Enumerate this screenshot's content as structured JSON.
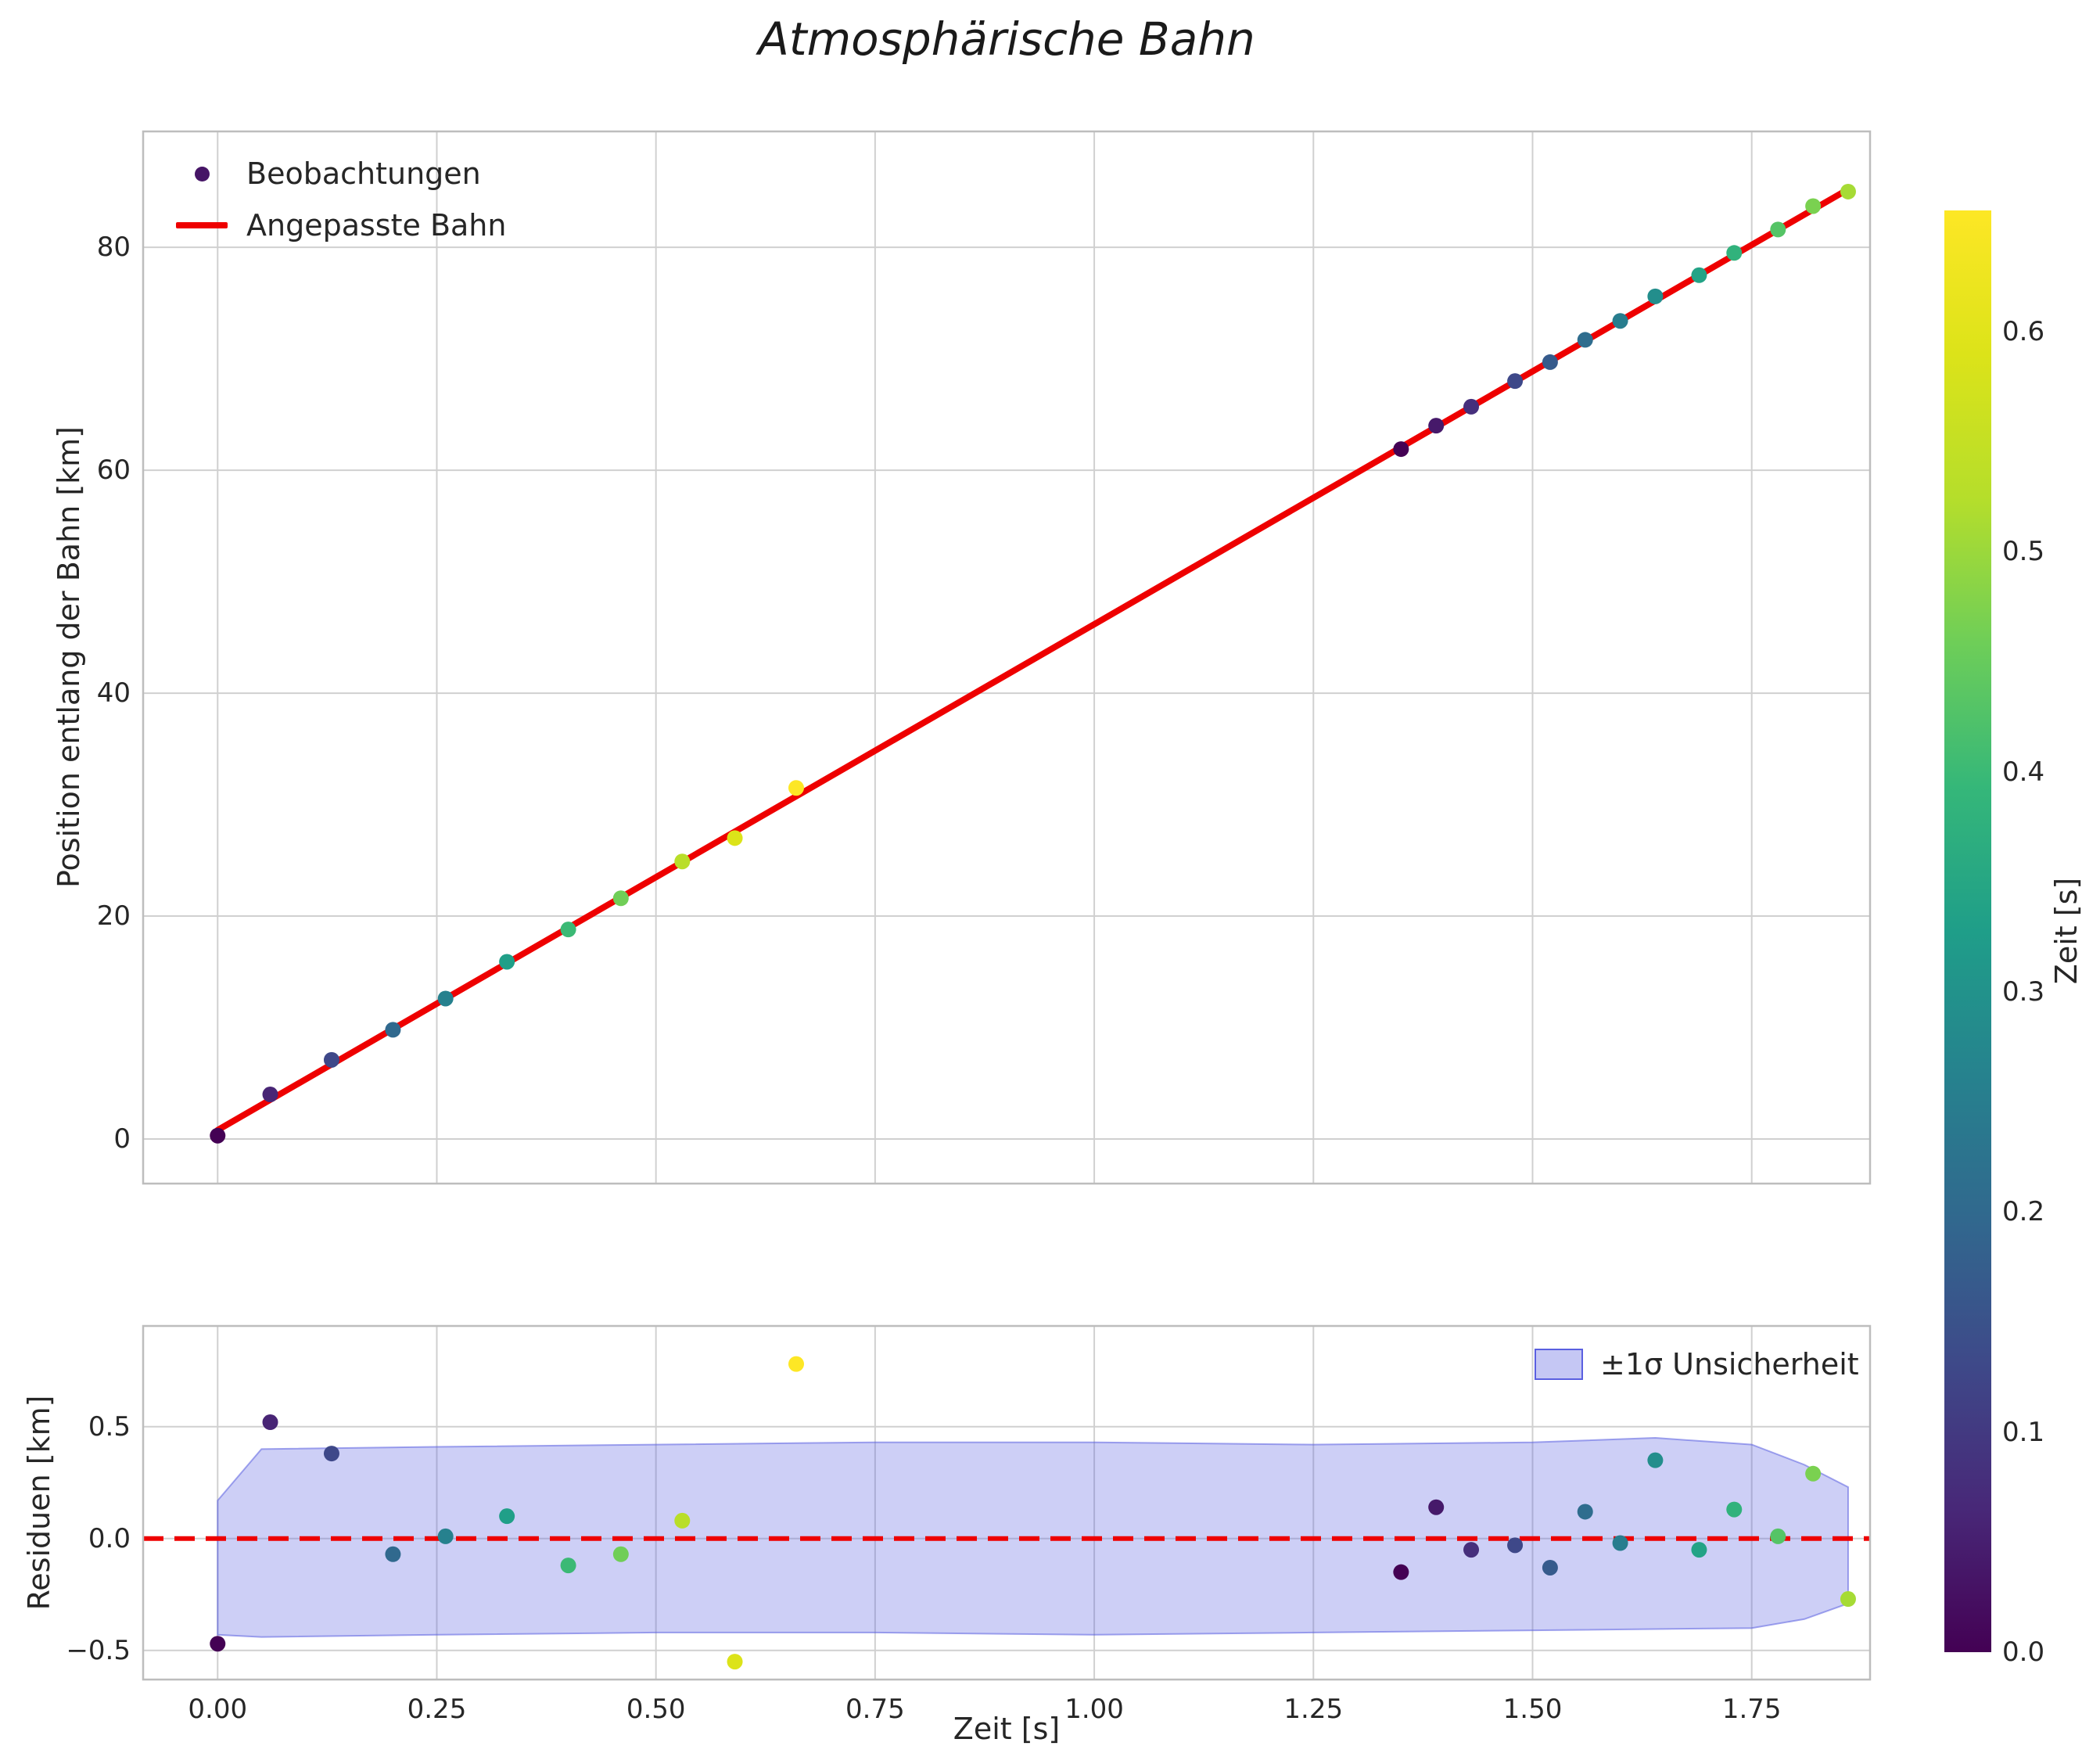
{
  "title": "Atmosphärische Bahn",
  "chart_data": [
    {
      "type": "scatter",
      "title": "Atmosphärische Bahn",
      "xlabel": "",
      "ylabel": "Position entlang der Bahn [km]",
      "xlim": [
        -0.085,
        1.885
      ],
      "ylim": [
        -4,
        90.4
      ],
      "grid": true,
      "legend_position": "upper left",
      "xticks": [
        0,
        0.25,
        0.5,
        0.75,
        1.0,
        1.25,
        1.5,
        1.75
      ],
      "yticks": [
        0,
        20,
        40,
        60,
        80
      ],
      "ytick_labels": [
        "0",
        "20",
        "40",
        "60",
        "80"
      ],
      "legend_items": [
        {
          "label": "Beobachtungen",
          "type": "marker"
        },
        {
          "label": "Angepasste Bahn",
          "type": "line",
          "color": "#ee0000"
        }
      ],
      "fit_line": {
        "name": "Angepasste Bahn",
        "color": "#ee0000",
        "x": [
          0.0,
          1.862
        ],
        "y": [
          0.8,
          85.3
        ]
      },
      "colormap": "viridis",
      "points": [
        {
          "t": 0.0,
          "s": 0.3,
          "r": -0.47,
          "c": 0.0
        },
        {
          "t": 0.06,
          "s": 4.0,
          "r": 0.52,
          "c": 0.06
        },
        {
          "t": 0.13,
          "s": 7.1,
          "r": 0.38,
          "c": 0.13
        },
        {
          "t": 0.2,
          "s": 9.8,
          "r": -0.07,
          "c": 0.2
        },
        {
          "t": 0.26,
          "s": 12.6,
          "r": 0.01,
          "c": 0.26
        },
        {
          "t": 0.33,
          "s": 15.9,
          "r": 0.1,
          "c": 0.33
        },
        {
          "t": 0.4,
          "s": 18.8,
          "r": -0.12,
          "c": 0.4
        },
        {
          "t": 0.46,
          "s": 21.6,
          "r": -0.07,
          "c": 0.46
        },
        {
          "t": 0.53,
          "s": 24.9,
          "r": 0.08,
          "c": 0.53
        },
        {
          "t": 0.59,
          "s": 27.0,
          "r": -0.55,
          "c": 0.59
        },
        {
          "t": 0.66,
          "s": 31.5,
          "r": 0.78,
          "c": 0.66
        },
        {
          "t": 1.35,
          "s": 61.9,
          "r": -0.15,
          "c": 0.0
        },
        {
          "t": 1.39,
          "s": 64.0,
          "r": 0.14,
          "c": 0.04
        },
        {
          "t": 1.43,
          "s": 65.7,
          "r": -0.05,
          "c": 0.08
        },
        {
          "t": 1.48,
          "s": 68.0,
          "r": -0.03,
          "c": 0.13
        },
        {
          "t": 1.52,
          "s": 69.7,
          "r": -0.13,
          "c": 0.17
        },
        {
          "t": 1.56,
          "s": 71.7,
          "r": 0.12,
          "c": 0.21
        },
        {
          "t": 1.6,
          "s": 73.4,
          "r": -0.02,
          "c": 0.25
        },
        {
          "t": 1.64,
          "s": 75.6,
          "r": 0.35,
          "c": 0.29
        },
        {
          "t": 1.69,
          "s": 77.5,
          "r": -0.05,
          "c": 0.34
        },
        {
          "t": 1.73,
          "s": 79.5,
          "r": 0.13,
          "c": 0.38
        },
        {
          "t": 1.78,
          "s": 81.6,
          "r": 0.01,
          "c": 0.43
        },
        {
          "t": 1.82,
          "s": 83.7,
          "r": 0.29,
          "c": 0.47
        },
        {
          "t": 1.86,
          "s": 85.0,
          "r": -0.27,
          "c": 0.51
        }
      ]
    },
    {
      "type": "scatter",
      "xlabel": "Zeit [s]",
      "ylabel": "Residuen [km]",
      "xlim": [
        -0.085,
        1.885
      ],
      "ylim": [
        -0.63,
        0.95
      ],
      "grid": true,
      "legend_position": "upper right",
      "xticks": [
        0,
        0.25,
        0.5,
        0.75,
        1.0,
        1.25,
        1.5,
        1.75
      ],
      "xtick_labels": [
        "0.00",
        "0.25",
        "0.50",
        "0.75",
        "1.00",
        "1.25",
        "1.50",
        "1.75"
      ],
      "yticks": [
        -0.5,
        0,
        0.5
      ],
      "ytick_labels": [
        "−0.5",
        "0.0",
        "0.5"
      ],
      "legend_items": [
        {
          "label": "±1σ Unsicherheit",
          "type": "patch"
        }
      ],
      "zero_line": {
        "y": 0,
        "color": "#ee0000",
        "style": "dashed"
      },
      "band": {
        "label": "±1σ Unsicherheit",
        "color": "#5a5fe0",
        "alpha": 0.3,
        "upper": [
          [
            0.0,
            0.17
          ],
          [
            0.05,
            0.4
          ],
          [
            0.25,
            0.41
          ],
          [
            0.5,
            0.42
          ],
          [
            0.75,
            0.43
          ],
          [
            1.0,
            0.43
          ],
          [
            1.25,
            0.42
          ],
          [
            1.5,
            0.43
          ],
          [
            1.64,
            0.45
          ],
          [
            1.75,
            0.42
          ],
          [
            1.81,
            0.33
          ],
          [
            1.86,
            0.23
          ]
        ],
        "lower": [
          [
            0.0,
            -0.43
          ],
          [
            0.05,
            -0.44
          ],
          [
            0.25,
            -0.43
          ],
          [
            0.5,
            -0.42
          ],
          [
            0.75,
            -0.42
          ],
          [
            1.0,
            -0.43
          ],
          [
            1.25,
            -0.42
          ],
          [
            1.5,
            -0.41
          ],
          [
            1.75,
            -0.4
          ],
          [
            1.81,
            -0.36
          ],
          [
            1.86,
            -0.29
          ]
        ]
      }
    }
  ],
  "colorbar": {
    "label": "Zeit [s]",
    "colormap": "viridis",
    "vmin": 0.0,
    "vmax": 0.655,
    "tick_values": [
      0,
      0.1,
      0.2,
      0.3,
      0.4,
      0.5,
      0.6
    ],
    "tick_labels": [
      "0.0",
      "0.1",
      "0.2",
      "0.3",
      "0.4",
      "0.5",
      "0.6"
    ]
  }
}
